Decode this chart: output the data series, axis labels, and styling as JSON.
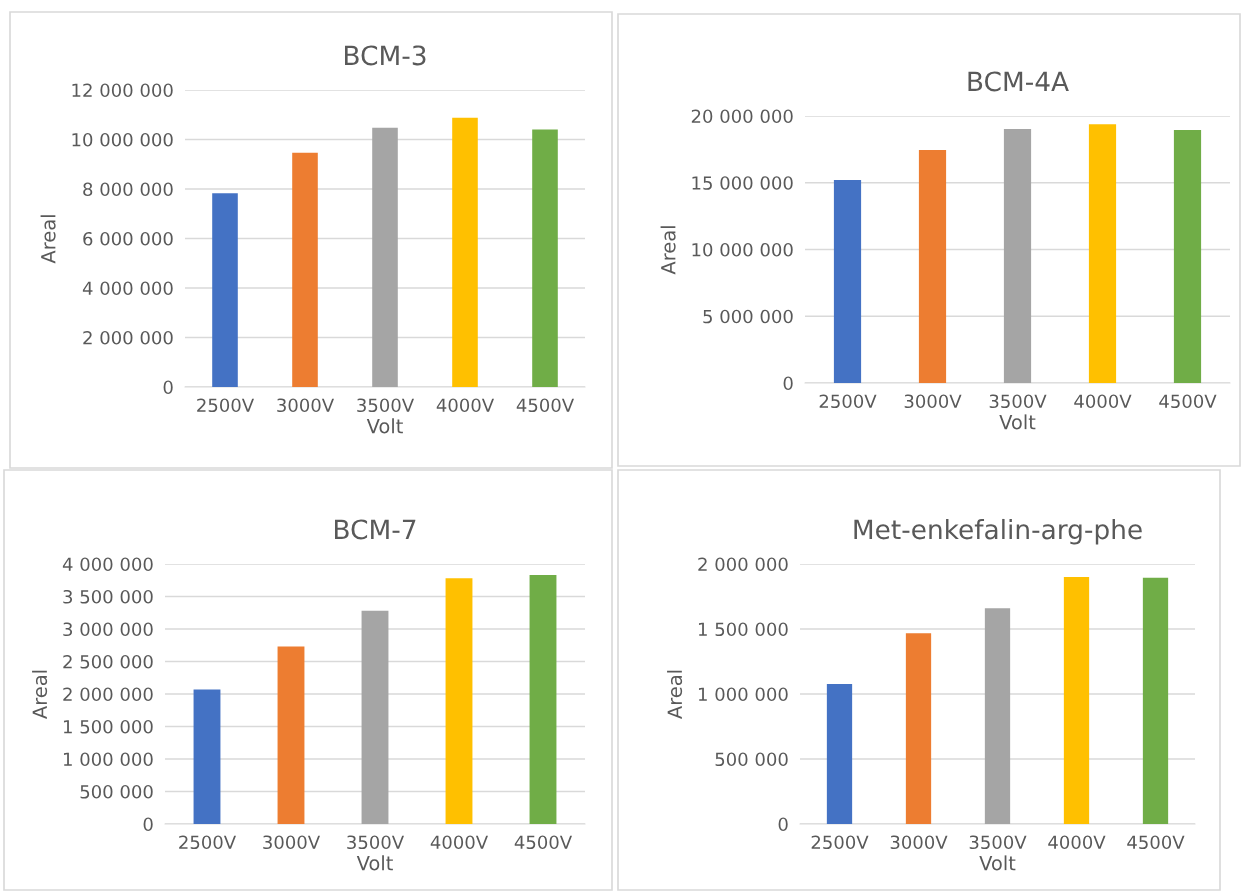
{
  "chart_data": [
    {
      "type": "bar",
      "title": "BCM-3",
      "xlabel": "Volt",
      "ylabel": "Areal",
      "categories": [
        "2500V",
        "3000V",
        "3500V",
        "4000V",
        "4500V"
      ],
      "values": [
        7830000,
        9460000,
        10470000,
        10880000,
        10400000
      ],
      "colors": [
        "#4472c4",
        "#ed7d31",
        "#a5a5a5",
        "#ffc000",
        "#70ad47"
      ],
      "ylim": [
        0,
        12000000
      ],
      "yticks": [
        {
          "value": 0,
          "label": "0"
        },
        {
          "value": 2000000,
          "label": "2 000 000"
        },
        {
          "value": 4000000,
          "label": "4 000 000"
        },
        {
          "value": 6000000,
          "label": "6 000 000"
        },
        {
          "value": 8000000,
          "label": "8 000 000"
        },
        {
          "value": 10000000,
          "label": "10 000 000"
        },
        {
          "value": 12000000,
          "label": "12 000 000"
        }
      ],
      "grid": "y",
      "legend": false
    },
    {
      "type": "bar",
      "title": "BCM-4A",
      "xlabel": "Volt",
      "ylabel": "Areal",
      "categories": [
        "2500V",
        "3000V",
        "3500V",
        "4000V",
        "4500V"
      ],
      "values": [
        15200000,
        17450000,
        19020000,
        19380000,
        18960000
      ],
      "colors": [
        "#4472c4",
        "#ed7d31",
        "#a5a5a5",
        "#ffc000",
        "#70ad47"
      ],
      "ylim": [
        0,
        20000000
      ],
      "yticks": [
        {
          "value": 0,
          "label": "0"
        },
        {
          "value": 5000000,
          "label": "5 000 000"
        },
        {
          "value": 10000000,
          "label": "10 000 000"
        },
        {
          "value": 15000000,
          "label": "15 000 000"
        },
        {
          "value": 20000000,
          "label": "20 000 000"
        }
      ],
      "grid": "y",
      "legend": false
    },
    {
      "type": "bar",
      "title": "BCM-7",
      "xlabel": "Volt",
      "ylabel": "Areal",
      "categories": [
        "2500V",
        "3000V",
        "3500V",
        "4000V",
        "4500V"
      ],
      "values": [
        2070000,
        2730000,
        3280000,
        3780000,
        3830000
      ],
      "colors": [
        "#4472c4",
        "#ed7d31",
        "#a5a5a5",
        "#ffc000",
        "#70ad47"
      ],
      "ylim": [
        0,
        4000000
      ],
      "yticks": [
        {
          "value": 0,
          "label": "0"
        },
        {
          "value": 500000,
          "label": "500 000"
        },
        {
          "value": 1000000,
          "label": "1 000 000"
        },
        {
          "value": 1500000,
          "label": "1 500 000"
        },
        {
          "value": 2000000,
          "label": "2 000 000"
        },
        {
          "value": 2500000,
          "label": "2 500 000"
        },
        {
          "value": 3000000,
          "label": "3 000 000"
        },
        {
          "value": 3500000,
          "label": "3 500 000"
        },
        {
          "value": 4000000,
          "label": "4 000 000"
        }
      ],
      "grid": "y",
      "legend": false
    },
    {
      "type": "bar",
      "title": "Met-enkefalin-arg-phe",
      "xlabel": "Volt",
      "ylabel": "Areal",
      "categories": [
        "2500V",
        "3000V",
        "3500V",
        "4000V",
        "4500V"
      ],
      "values": [
        1076000,
        1468000,
        1660000,
        1900000,
        1894000
      ],
      "colors": [
        "#4472c4",
        "#ed7d31",
        "#a5a5a5",
        "#ffc000",
        "#70ad47"
      ],
      "ylim": [
        0,
        2000000
      ],
      "yticks": [
        {
          "value": 0,
          "label": "0"
        },
        {
          "value": 500000,
          "label": "500 000"
        },
        {
          "value": 1000000,
          "label": "1 000 000"
        },
        {
          "value": 1500000,
          "label": "1 500 000"
        },
        {
          "value": 2000000,
          "label": "2 000 000"
        }
      ],
      "grid": "y",
      "legend": false
    }
  ]
}
